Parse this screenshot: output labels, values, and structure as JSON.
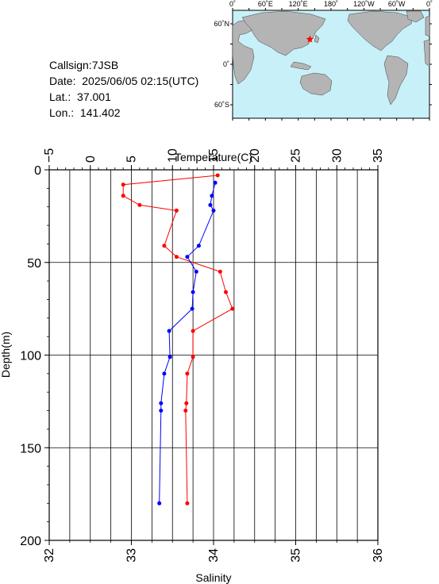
{
  "header": {
    "callsign_label": "Callsign:7JSB",
    "date_label": "Date:",
    "date_value": "2025/06/05 02:15(UTC)",
    "lat_label": "Lat.:",
    "lat_value": "37.001",
    "lon_label": "Lon.:",
    "lon_value": "141.402"
  },
  "map": {
    "lon_labels": [
      "0˚",
      "60˚E",
      "120˚E",
      "180˚",
      "120˚W",
      "60˚W",
      "0˚"
    ],
    "lat_labels": [
      "60˚N",
      "0˚",
      "60˚S"
    ],
    "ocean_color": "#c8f0f8",
    "land_color": "#b4b4b4",
    "station_marker_color": "#ff0000",
    "station": {
      "lat": 37.001,
      "lon": 141.402
    }
  },
  "chart_data": {
    "type": "line",
    "y_label": "Depth(m)",
    "y_ticks": [
      "0",
      "50",
      "100",
      "150",
      "200"
    ],
    "ylim": [
      0,
      200
    ],
    "y_inverted": true,
    "top_axis": {
      "label": "Temperature(C)",
      "ticks": [
        "−5",
        "0",
        "5",
        "10",
        "15",
        "20",
        "25",
        "30",
        "35"
      ],
      "range": [
        -5,
        35
      ]
    },
    "bottom_axis": {
      "label": "Salinity",
      "ticks": [
        "32",
        "33",
        "34",
        "35",
        "36"
      ],
      "range": [
        32,
        36
      ]
    },
    "grid": true,
    "series": [
      {
        "axis": "top",
        "color": "#ff0000",
        "points": [
          {
            "value": 15.5,
            "depth": 3
          },
          {
            "value": 4.0,
            "depth": 8
          },
          {
            "value": 4.0,
            "depth": 14
          },
          {
            "value": 6.0,
            "depth": 19
          },
          {
            "value": 10.5,
            "depth": 22
          },
          {
            "value": 9.0,
            "depth": 41
          },
          {
            "value": 10.5,
            "depth": 47
          },
          {
            "value": 15.8,
            "depth": 55
          },
          {
            "value": 16.5,
            "depth": 66
          },
          {
            "value": 17.3,
            "depth": 75
          },
          {
            "value": 12.5,
            "depth": 87
          },
          {
            "value": 12.5,
            "depth": 101
          },
          {
            "value": 11.8,
            "depth": 110
          },
          {
            "value": 11.7,
            "depth": 126
          },
          {
            "value": 11.6,
            "depth": 130
          },
          {
            "value": 11.8,
            "depth": 180
          }
        ]
      },
      {
        "axis": "bottom",
        "color": "#0000ff",
        "points": [
          {
            "value": 34.02,
            "depth": 7
          },
          {
            "value": 33.98,
            "depth": 14
          },
          {
            "value": 33.96,
            "depth": 19
          },
          {
            "value": 34.0,
            "depth": 22
          },
          {
            "value": 33.82,
            "depth": 41
          },
          {
            "value": 33.68,
            "depth": 47
          },
          {
            "value": 33.79,
            "depth": 55
          },
          {
            "value": 33.75,
            "depth": 66
          },
          {
            "value": 33.74,
            "depth": 75
          },
          {
            "value": 33.46,
            "depth": 87
          },
          {
            "value": 33.47,
            "depth": 101
          },
          {
            "value": 33.4,
            "depth": 110
          },
          {
            "value": 33.36,
            "depth": 126
          },
          {
            "value": 33.36,
            "depth": 130
          },
          {
            "value": 33.34,
            "depth": 180
          }
        ]
      }
    ]
  }
}
